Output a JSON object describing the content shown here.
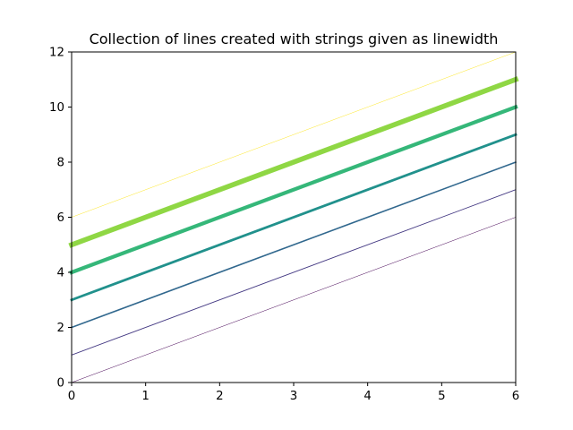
{
  "chart_data": {
    "type": "line",
    "title": "Collection of lines created with strings given as linewidth",
    "xlabel": "",
    "ylabel": "",
    "xlim": [
      0,
      6
    ],
    "ylim": [
      0,
      12
    ],
    "xticks": [
      0,
      1,
      2,
      3,
      4,
      5,
      6
    ],
    "yticks": [
      0,
      2,
      4,
      6,
      8,
      10,
      12
    ],
    "grid": false,
    "legend": "none",
    "series": [
      {
        "x": [
          0,
          6
        ],
        "y": [
          0,
          6
        ],
        "color": "#440154",
        "linewidth": "xx-thin"
      },
      {
        "x": [
          0,
          6
        ],
        "y": [
          1,
          7
        ],
        "color": "#443983",
        "linewidth": "x-thin"
      },
      {
        "x": [
          0,
          6
        ],
        "y": [
          2,
          8
        ],
        "color": "#31688e",
        "linewidth": "thin"
      },
      {
        "x": [
          0,
          6
        ],
        "y": [
          3,
          9
        ],
        "color": "#21918c",
        "linewidth": "medium"
      },
      {
        "x": [
          0,
          6
        ],
        "y": [
          4,
          10
        ],
        "color": "#35b779",
        "linewidth": "thick"
      },
      {
        "x": [
          0,
          6
        ],
        "y": [
          5,
          11
        ],
        "color": "#8fd744",
        "linewidth": "x-thick"
      },
      {
        "x": [
          0,
          6
        ],
        "y": [
          6,
          12
        ],
        "color": "#fde725",
        "linewidth": "xx-thin"
      }
    ]
  }
}
